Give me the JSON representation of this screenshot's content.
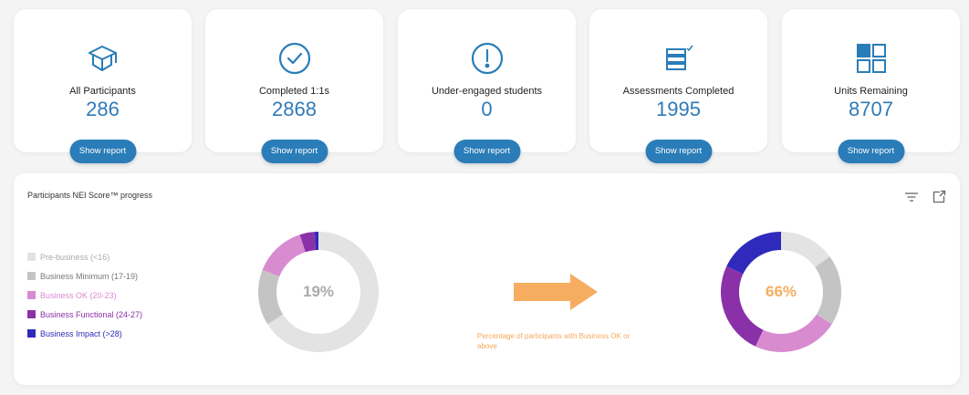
{
  "cards": [
    {
      "label": "All Participants",
      "value": "286",
      "icon": "graduation-cap-icon",
      "button": "Show report"
    },
    {
      "label": "Completed 1:1s",
      "value": "2868",
      "icon": "check-circle-icon",
      "button": "Show report"
    },
    {
      "label": "Under-engaged students",
      "value": "0",
      "icon": "exclamation-circle-icon",
      "button": "Show report"
    },
    {
      "label": "Assessments Completed",
      "value": "1995",
      "icon": "checklist-icon",
      "button": "Show report"
    },
    {
      "label": "Units Remaining",
      "value": "8707",
      "icon": "grid-icon",
      "button": "Show report"
    }
  ],
  "panel": {
    "title": "Participants NEI Score™ progress",
    "tools": [
      "filter-icon",
      "export-icon"
    ],
    "caption": "Percentage of participants with Business OK or above",
    "before_label": "19%",
    "after_label": "66%"
  },
  "colors": {
    "accent": "#2a7db8",
    "orange": "#f6ad5f",
    "pre_business": "#e3e3e3",
    "business_minimum": "#c4c4c4",
    "business_ok": "#d98bd0",
    "business_functional": "#8a31a9",
    "business_impact": "#2f2abb"
  },
  "chart_data": [
    {
      "type": "pie",
      "title": "Before",
      "center_label": "19%",
      "categories": [
        "Pre-business (<16)",
        "Business Minimum (17-19)",
        "Business OK (20-23)",
        "Business Functional (24-27)",
        "Business Impact (>28)"
      ],
      "values": [
        66,
        15,
        14,
        4,
        1
      ],
      "colors": [
        "#e3e3e3",
        "#c4c4c4",
        "#d98bd0",
        "#8a31a9",
        "#2f2abb"
      ],
      "legend_position": "left"
    },
    {
      "type": "pie",
      "title": "After",
      "center_label": "66%",
      "categories": [
        "Pre-business (<16)",
        "Business Minimum (17-19)",
        "Business OK (20-23)",
        "Business Functional (24-27)",
        "Business Impact (>28)"
      ],
      "values": [
        15,
        19,
        23,
        25,
        18
      ],
      "colors": [
        "#e3e3e3",
        "#c4c4c4",
        "#d98bd0",
        "#8a31a9",
        "#2f2abb"
      ]
    }
  ],
  "legend": [
    {
      "label": "Pre-business (<16)",
      "color": "#e3e3e3",
      "text_color": "#aaaaaa"
    },
    {
      "label": "Business Minimum (17-19)",
      "color": "#c4c4c4",
      "text_color": "#777777"
    },
    {
      "label": "Business OK (20-23)",
      "color": "#d98bd0",
      "text_color": "#d98bd0"
    },
    {
      "label": "Business Functional (24-27)",
      "color": "#8a31a9",
      "text_color": "#8a31a9"
    },
    {
      "label": "Business Impact (>28)",
      "color": "#2f2abb",
      "text_color": "#2f2abb"
    }
  ]
}
